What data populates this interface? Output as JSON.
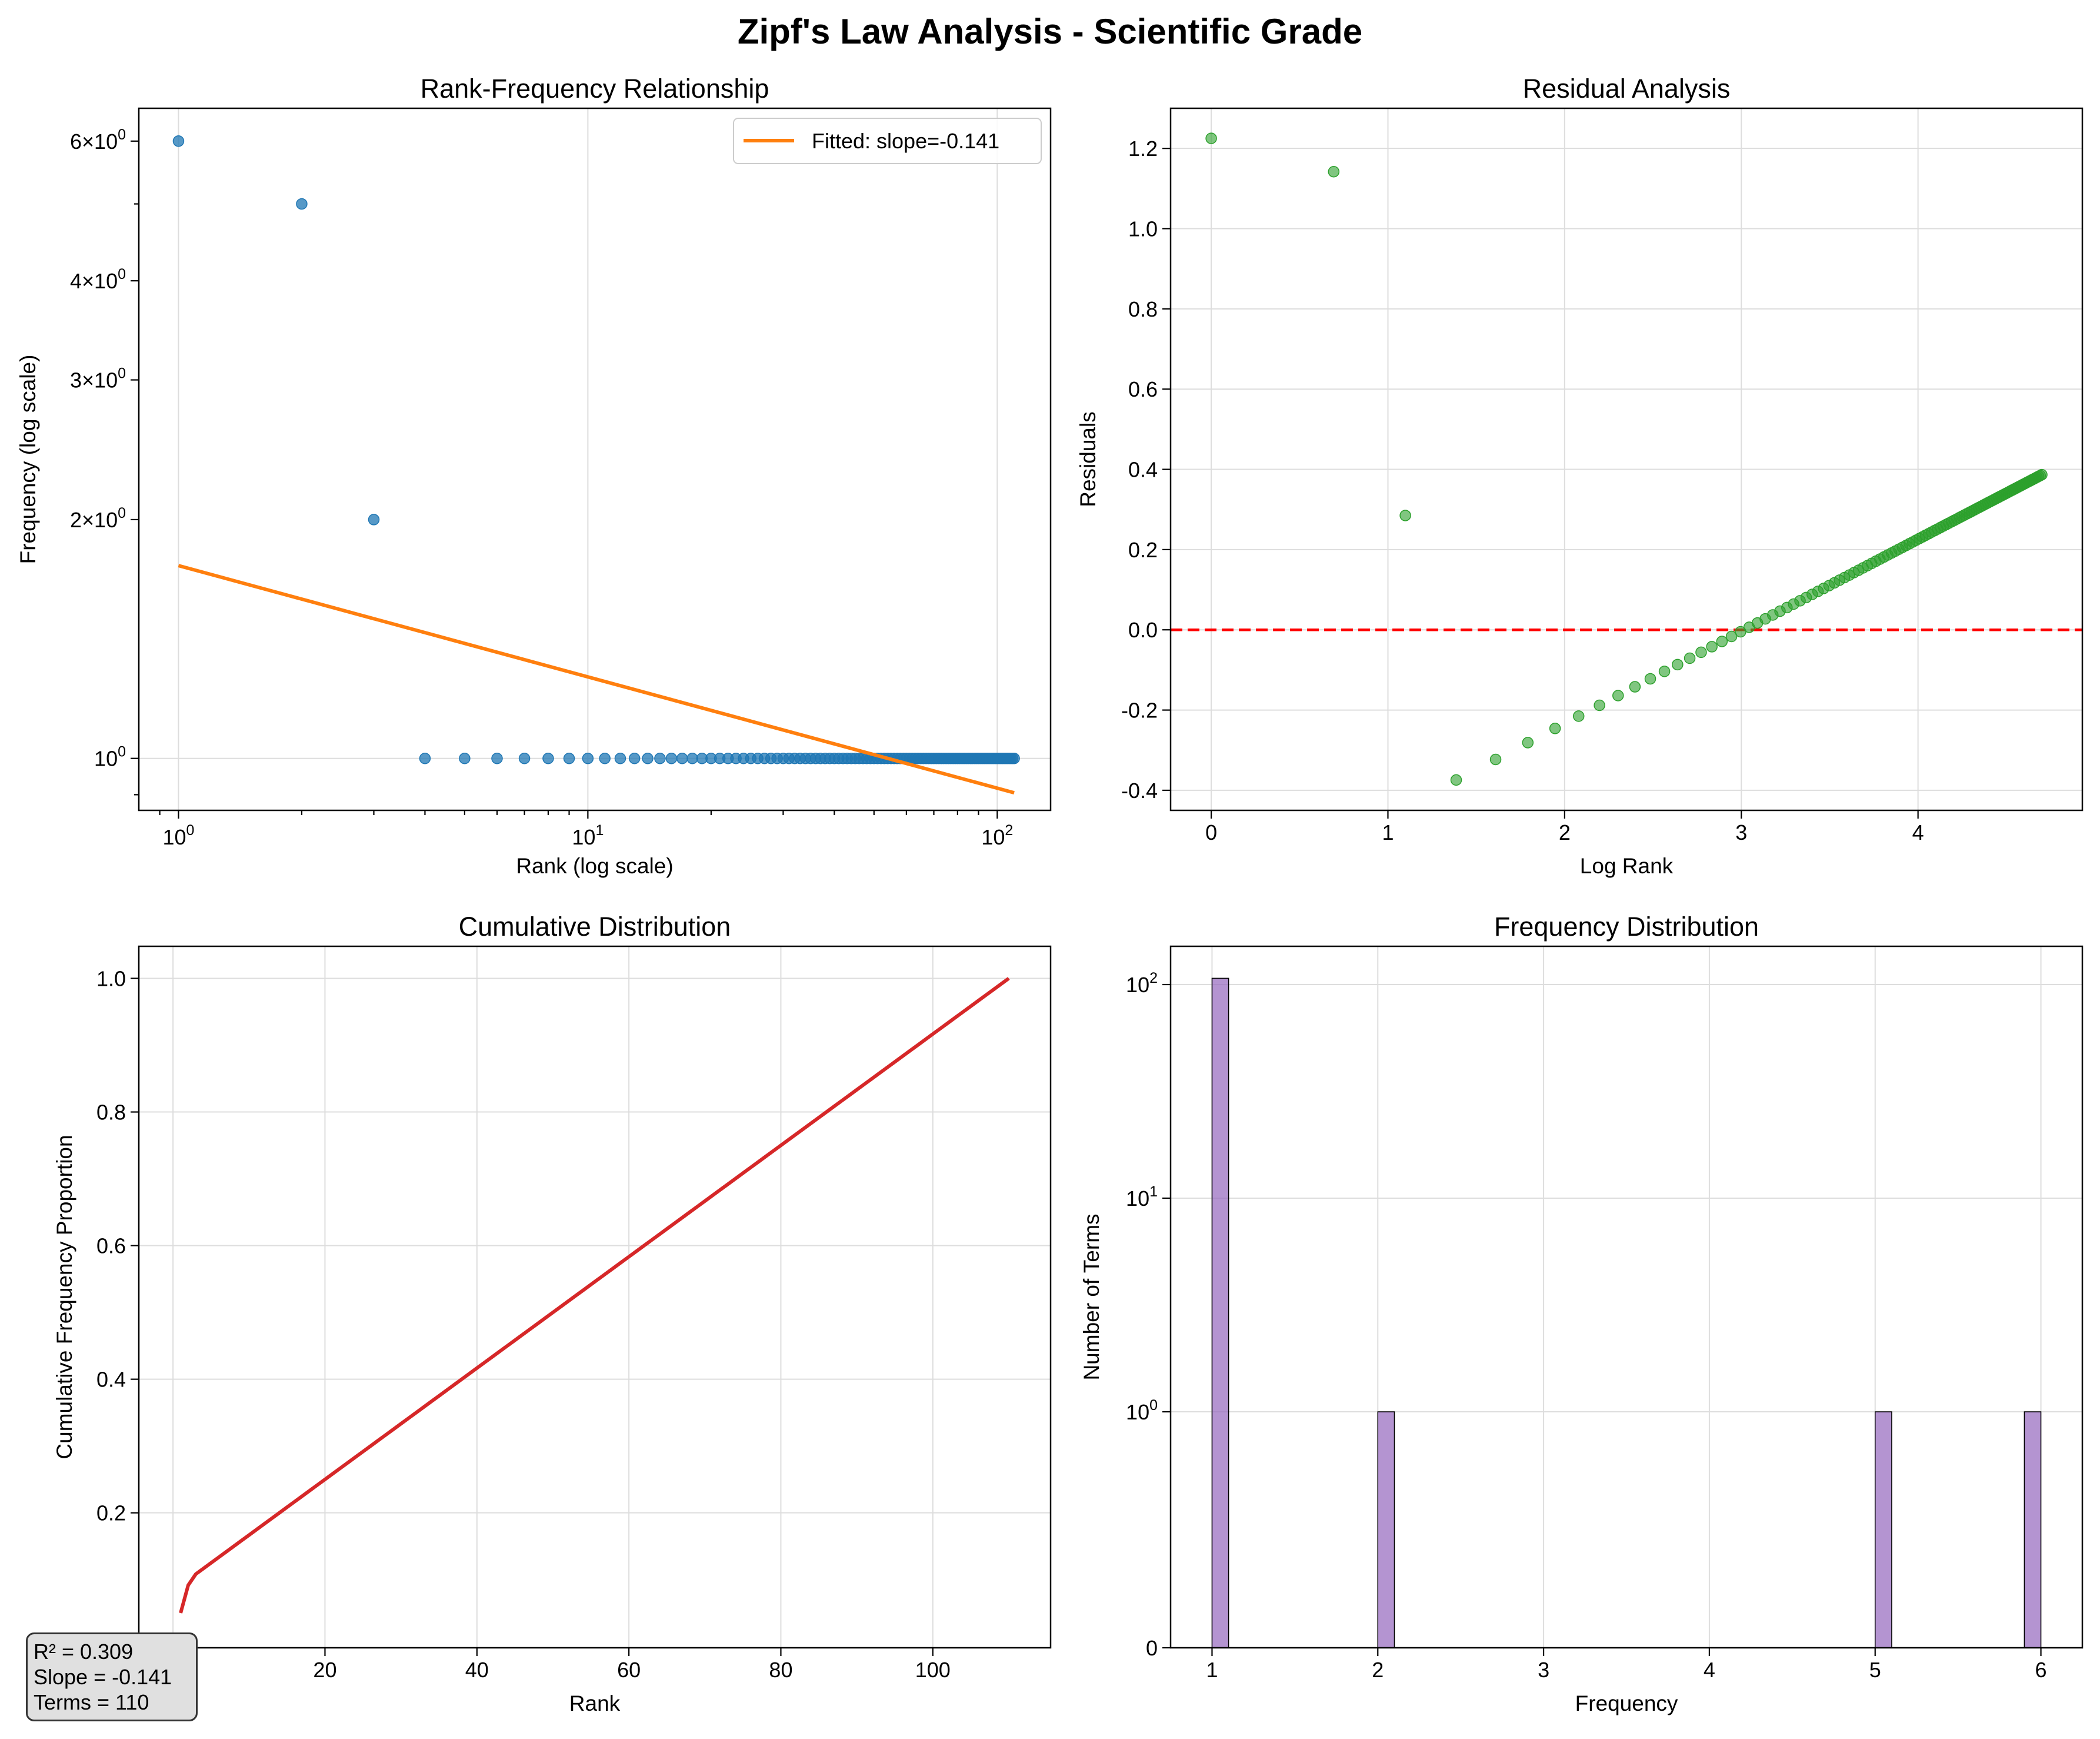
{
  "figure": {
    "title": "Zipf's Law Analysis - Scientific Grade"
  },
  "stats": {
    "r2": "R² = 0.309",
    "slope": "Slope = -0.141",
    "terms": "Terms = 110"
  },
  "chart_data": [
    {
      "type": "scatter",
      "title": "Rank-Frequency Relationship",
      "xlabel": "Rank (log scale)",
      "ylabel": "Frequency (log scale)",
      "xscale": "log",
      "yscale": "log",
      "xlim": [
        0.8,
        135
      ],
      "ylim": [
        0.86,
        6.6
      ],
      "xticks": [
        {
          "v": 1,
          "b": "10",
          "e": "0"
        },
        {
          "v": 10,
          "b": "10",
          "e": "1"
        },
        {
          "v": 100,
          "b": "10",
          "e": "2"
        }
      ],
      "yticks": [
        {
          "v": 1,
          "b": "10",
          "e": "0"
        },
        {
          "v": 2,
          "b": "2×10",
          "e": "0"
        },
        {
          "v": 3,
          "b": "3×10",
          "e": "0"
        },
        {
          "v": 4,
          "b": "4×10",
          "e": "0"
        },
        {
          "v": 6,
          "b": "6×10",
          "e": "0"
        }
      ],
      "grid": true,
      "legend": "top-right",
      "point_color": "#1f77b4",
      "points": {
        "rank_start": 1,
        "rank_end": 110,
        "frequencies_top": [
          6,
          5,
          2
        ],
        "frequency_rest": 1
      },
      "fit": {
        "label": "Fitted: slope=-0.141",
        "color": "#ff7f0e",
        "x": [
          1,
          110
        ],
        "y": [
          1.75,
          0.905
        ]
      }
    },
    {
      "type": "scatter",
      "title": "Residual Analysis",
      "xlabel": "Log Rank",
      "ylabel": "Residuals",
      "xlim": [
        -0.23,
        4.93
      ],
      "ylim": [
        -0.45,
        1.3
      ],
      "xticks": [
        0,
        1,
        2,
        3,
        4
      ],
      "yticks": [
        -0.4,
        -0.2,
        0.0,
        0.2,
        0.4,
        0.6,
        0.8,
        1.0,
        1.2
      ],
      "ytick_labels": [
        "-0.4",
        "-0.2",
        "0.0",
        "0.2",
        "0.4",
        "0.6",
        "0.8",
        "1.0",
        "1.2"
      ],
      "grid": true,
      "point_color": "#2ca02c",
      "zero_line_color": "#ff0000",
      "points": {
        "rank_start": 1,
        "rank_end": 110,
        "residuals_top": [
          1.225,
          1.142,
          0.285
        ],
        "rest_intercept": -0.6926,
        "rest_slope": 0.2296
      }
    },
    {
      "type": "line",
      "title": "Cumulative Distribution",
      "xlabel": "Rank",
      "ylabel": "Cumulative Frequency Proportion",
      "xlim": [
        -4.5,
        115.5
      ],
      "ylim": [
        -0.002,
        1.048
      ],
      "xticks": [
        20,
        40,
        60,
        80,
        100
      ],
      "yticks": [
        0.2,
        0.4,
        0.6,
        0.8,
        1.0
      ],
      "ytick_labels": [
        "0.2",
        "0.4",
        "0.6",
        "0.8",
        "1.0"
      ],
      "grid": true,
      "line_color": "#d62728",
      "line": {
        "rank_start": 1,
        "rank_end": 110,
        "frequencies_top": [
          6,
          5,
          2
        ],
        "frequency_rest": 1,
        "total": 120
      }
    },
    {
      "type": "bar",
      "title": "Frequency Distribution",
      "xlabel": "Frequency",
      "ylabel": "Number of Terms",
      "yscale": "symlog",
      "xlim": [
        0.75,
        6.25
      ],
      "xticks": [
        1,
        2,
        3,
        4,
        5,
        6
      ],
      "yticks": [
        {
          "v": 0,
          "b": "0",
          "e": ""
        },
        {
          "v": 1,
          "b": "10",
          "e": "0"
        },
        {
          "v": 10,
          "b": "10",
          "e": "1"
        },
        {
          "v": 100,
          "b": "10",
          "e": "2"
        }
      ],
      "grid": true,
      "bar_color": "#9467bd",
      "bar_width": 0.1,
      "bars": [
        {
          "x": 1.05,
          "count": 107
        },
        {
          "x": 2.05,
          "count": 1
        },
        {
          "x": 5.05,
          "count": 1
        },
        {
          "x": 5.95,
          "count": 1
        }
      ]
    }
  ]
}
